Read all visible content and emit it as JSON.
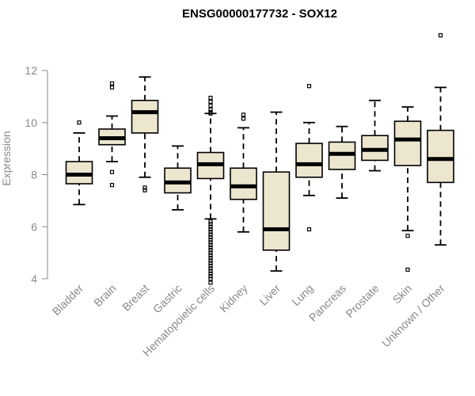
{
  "chart_data": {
    "type": "boxplot",
    "title": "ENSG00000177732 - SOX12",
    "xlabel": "",
    "ylabel": "Expression",
    "ylim": [
      3.8,
      13.6
    ],
    "yticks": [
      4,
      6,
      8,
      10,
      12
    ],
    "colors": {
      "box_fill": "#ede6cf",
      "stroke": "#000000",
      "axis": "#888888"
    },
    "categories": [
      "Bladder",
      "Brain",
      "Breast",
      "Gastric",
      "Hematopoietic cells",
      "Kidney",
      "Liver",
      "Lung",
      "Pancreas",
      "Prostate",
      "Skin",
      "Unknown / Other"
    ],
    "boxes": [
      {
        "name": "Bladder",
        "min": 6.85,
        "q1": 7.65,
        "median": 8.0,
        "q3": 8.5,
        "max": 9.6,
        "outliers": [
          10.0
        ]
      },
      {
        "name": "Brain",
        "min": 8.5,
        "q1": 9.15,
        "median": 9.4,
        "q3": 9.75,
        "max": 10.25,
        "outliers": [
          11.5,
          11.35,
          8.1,
          7.6
        ]
      },
      {
        "name": "Breast",
        "min": 7.9,
        "q1": 9.6,
        "median": 10.4,
        "q3": 10.85,
        "max": 11.75,
        "outliers": [
          7.5,
          7.4
        ]
      },
      {
        "name": "Gastric",
        "min": 6.65,
        "q1": 7.3,
        "median": 7.7,
        "q3": 8.25,
        "max": 9.1,
        "outliers": []
      },
      {
        "name": "Hematopoietic cells",
        "min": 6.3,
        "q1": 7.85,
        "median": 8.4,
        "q3": 8.85,
        "max": 10.35,
        "outliers": [
          10.95,
          10.8,
          10.65,
          10.5,
          10.4,
          10.35,
          6.2,
          6.1,
          6.0,
          5.9,
          5.8,
          5.7,
          5.6,
          5.5,
          5.4,
          5.3,
          5.2,
          5.1,
          5.0,
          4.9,
          4.8,
          4.7,
          4.6,
          4.5,
          4.4,
          4.3,
          4.2,
          4.1,
          4.0,
          3.85
        ]
      },
      {
        "name": "Kidney",
        "min": 5.8,
        "q1": 7.05,
        "median": 7.55,
        "q3": 8.25,
        "max": 9.8,
        "outliers": [
          10.3,
          10.15
        ]
      },
      {
        "name": "Liver",
        "min": 4.3,
        "q1": 5.1,
        "median": 5.9,
        "q3": 8.1,
        "max": 10.4,
        "outliers": []
      },
      {
        "name": "Lung",
        "min": 7.2,
        "q1": 7.9,
        "median": 8.4,
        "q3": 9.2,
        "max": 10.0,
        "outliers": [
          11.4,
          5.9
        ]
      },
      {
        "name": "Pancreas",
        "min": 7.1,
        "q1": 8.2,
        "median": 8.8,
        "q3": 9.25,
        "max": 9.85,
        "outliers": []
      },
      {
        "name": "Prostate",
        "min": 8.15,
        "q1": 8.55,
        "median": 8.95,
        "q3": 9.5,
        "max": 10.85,
        "outliers": []
      },
      {
        "name": "Skin",
        "min": 5.85,
        "q1": 8.35,
        "median": 9.35,
        "q3": 10.05,
        "max": 10.6,
        "outliers": [
          5.65,
          4.35
        ]
      },
      {
        "name": "Unknown / Other",
        "min": 5.3,
        "q1": 7.7,
        "median": 8.6,
        "q3": 9.7,
        "max": 11.35,
        "outliers": [
          13.35
        ]
      }
    ]
  }
}
